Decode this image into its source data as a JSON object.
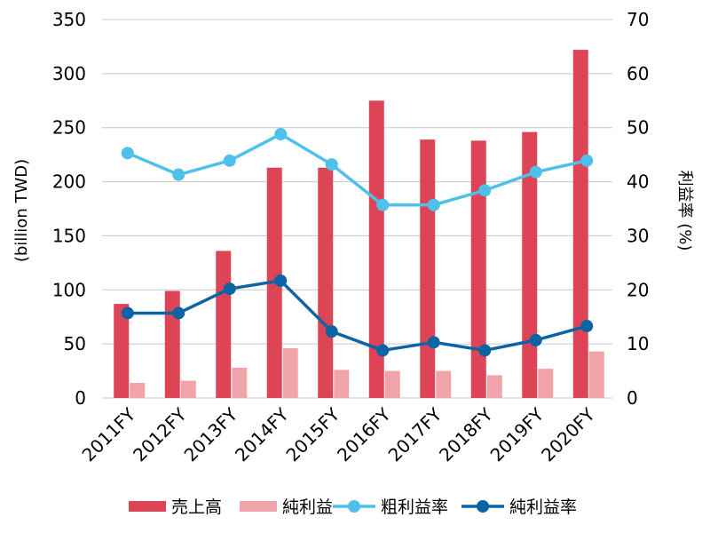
{
  "chart_data": {
    "type": "bar",
    "categories": [
      "2011FY",
      "2012FY",
      "2013FY",
      "2014FY",
      "2015FY",
      "2016FY",
      "2017FY",
      "2018FY",
      "2019FY",
      "2020FY"
    ],
    "series": [
      {
        "name": "売上高",
        "type": "bar",
        "axis": "left",
        "color": "#dd4456",
        "values": [
          87,
          99,
          136,
          213,
          213,
          275,
          239,
          238,
          246,
          322
        ]
      },
      {
        "name": "純利益",
        "type": "bar",
        "axis": "left",
        "color": "#f0a3a8",
        "values": [
          14,
          16,
          28,
          46,
          26,
          25,
          25,
          21,
          27,
          43
        ]
      },
      {
        "name": "粗利益率",
        "type": "line",
        "axis": "right",
        "color": "#4ec0ea",
        "values": [
          45.3,
          41.3,
          43.9,
          48.8,
          43.2,
          35.7,
          35.7,
          38.4,
          41.8,
          43.9
        ]
      },
      {
        "name": "純利益率",
        "type": "line",
        "axis": "right",
        "color": "#0c64a4",
        "values": [
          15.7,
          15.7,
          20.2,
          21.7,
          12.3,
          8.8,
          10.3,
          8.8,
          10.7,
          13.3
        ]
      }
    ],
    "ylabel": "(billion TWD)",
    "y2label": "利益率 (%)",
    "ylim": [
      0,
      350
    ],
    "y2lim": [
      0,
      70
    ],
    "yticks": [
      "0",
      "50",
      "100",
      "150",
      "200",
      "250",
      "300",
      "350"
    ],
    "y2ticks": [
      "0",
      "10",
      "20",
      "30",
      "40",
      "50",
      "60",
      "70"
    ],
    "grid": true,
    "legend_position": "bottom"
  }
}
